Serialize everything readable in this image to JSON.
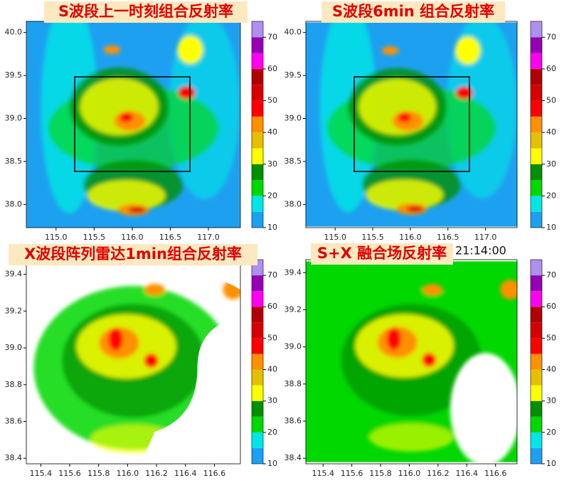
{
  "panels": [
    {
      "title": "S波段上一时刻组合反射率",
      "xlim": [
        114.61,
        117.42
      ],
      "ylim": [
        37.73,
        40.13
      ],
      "xticks": [
        {
          "value": 115,
          "label": "115.0"
        },
        115.5,
        {
          "value": 116,
          "label": "116.0"
        },
        116.5,
        {
          "value": 117,
          "label": "117.0"
        }
      ],
      "yticks": [
        {
          "value": 38,
          "label": "38.0"
        },
        38.5,
        {
          "value": 39,
          "label": "39.0"
        },
        39.5,
        {
          "value": 40,
          "label": "40.0"
        }
      ]
    },
    {
      "title": "S波段6min 组合反射率",
      "xlim": [
        114.61,
        117.42
      ],
      "ylim": [
        37.73,
        40.13
      ],
      "xticks": [
        {
          "value": 115,
          "label": "115.0"
        },
        115.5,
        {
          "value": 116,
          "label": "116.0"
        },
        116.5,
        {
          "value": 117,
          "label": "117.0"
        }
      ],
      "yticks": [
        {
          "value": 38,
          "label": "38.0"
        },
        38.5,
        {
          "value": 39,
          "label": "39.0"
        },
        39.5,
        {
          "value": 40,
          "label": "40.0"
        }
      ]
    },
    {
      "title": "X波段阵列雷达1min组合反射率",
      "xlim": [
        115.3,
        116.78
      ],
      "ylim": [
        38.37,
        39.46
      ],
      "xticks": [
        115.4,
        115.6,
        115.8,
        {
          "value": 116,
          "label": "116.0"
        },
        116.2,
        116.4,
        116.6
      ],
      "yticks": [
        38.4,
        38.6,
        38.8,
        {
          "value": 39,
          "label": "39.0"
        },
        39.2,
        39.4
      ]
    },
    {
      "title": "S+X 融合场反射率",
      "xlim": [
        115.28,
        116.75
      ],
      "ylim": [
        38.37,
        39.47
      ],
      "xticks": [
        115.4,
        115.6,
        115.8,
        {
          "value": 116,
          "label": "116.0"
        },
        116.2,
        116.4,
        116.6
      ],
      "yticks": [
        38.4,
        38.6,
        38.8,
        {
          "value": 39,
          "label": "39.0"
        },
        39.2,
        39.4
      ]
    }
  ],
  "time_label": "21:14:00",
  "colorbar": {
    "clim": [
      10,
      75
    ],
    "ticks": [
      10,
      20,
      30,
      40,
      50,
      60,
      70
    ],
    "colors": [
      "#1ea0f0",
      "#00e6e6",
      "#00d800",
      "#009000",
      "#ffff00",
      "#e6c000",
      "#ff9000",
      "#ff0000",
      "#d60000",
      "#b00000",
      "#ff00f0",
      "#9600b4",
      "#ad90f0"
    ]
  }
}
